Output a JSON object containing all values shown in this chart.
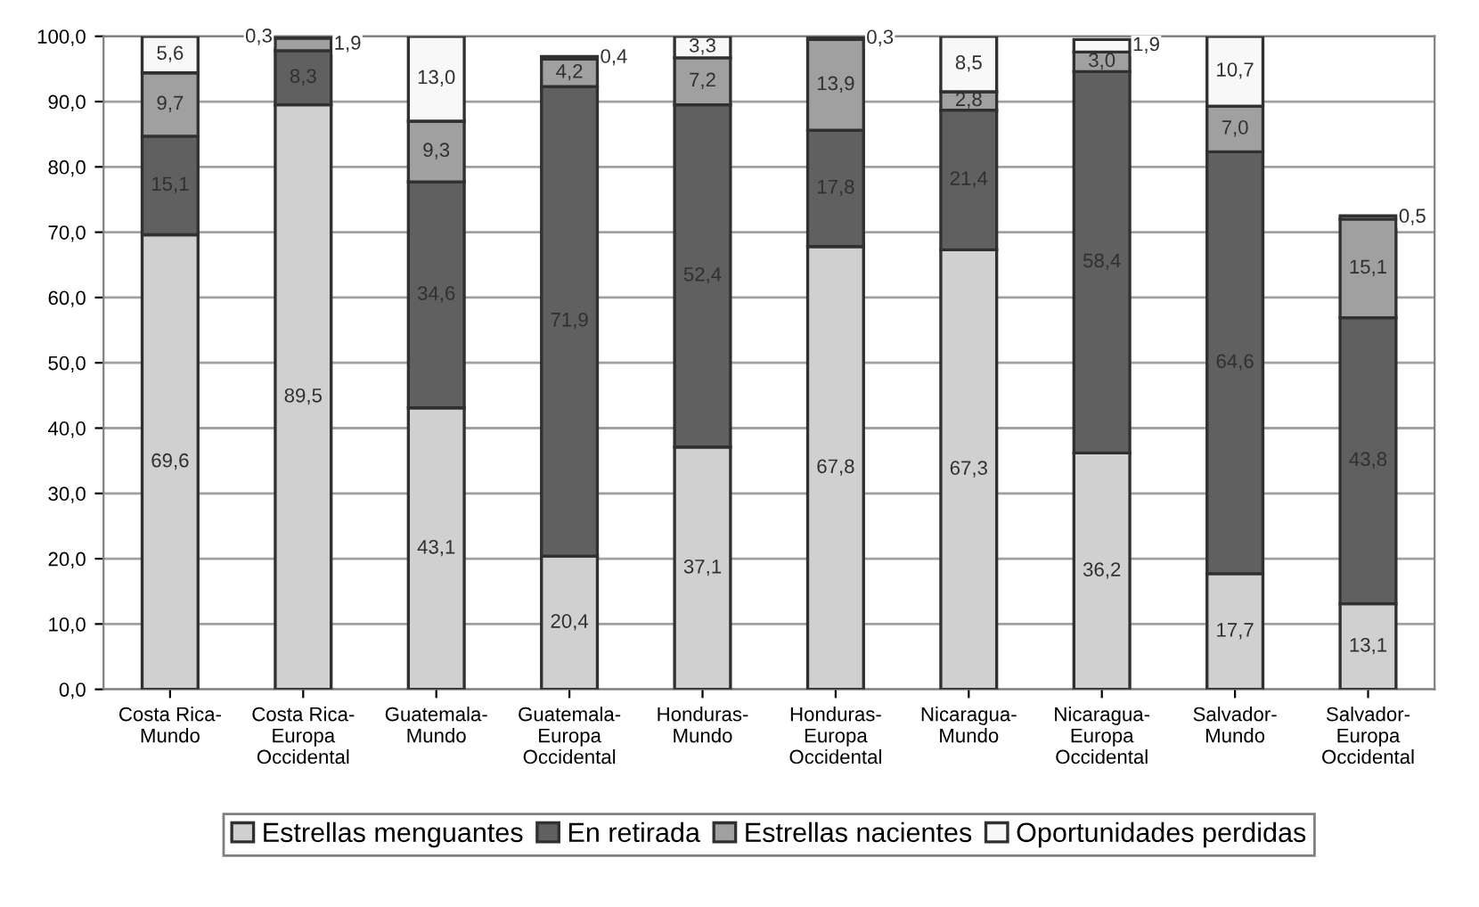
{
  "chart_data": {
    "type": "bar",
    "stacked": true,
    "categories": [
      "Costa Rica-\nMundo",
      "Costa Rica-\nEuropa\nOccidental",
      "Guatemala-\nMundo",
      "Guatemala-\nEuropa\nOccidental",
      "Honduras-\nMundo",
      "Honduras-\nEuropa\nOccidental",
      "Nicaragua-\nMundo",
      "Nicaragua-\nEuropa\nOccidental",
      "Salvador-\nMundo",
      "Salvador-\nEuropa\nOccidental"
    ],
    "series": [
      {
        "name": "Estrellas menguantes",
        "color": "#d0d0d0",
        "values": [
          69.6,
          89.5,
          43.1,
          20.4,
          37.1,
          67.8,
          67.3,
          36.2,
          17.7,
          13.1
        ],
        "value_labels": [
          "69,6",
          "89,5",
          "43,1",
          "20,4",
          "37,1",
          "67,8",
          "67,3",
          "36,2",
          "17,7",
          "13,1"
        ]
      },
      {
        "name": "En retirada",
        "color": "#606060",
        "values": [
          15.1,
          8.3,
          34.6,
          71.9,
          52.4,
          17.8,
          21.4,
          58.4,
          64.6,
          43.8
        ],
        "value_labels": [
          "15,1",
          "8,3",
          "34,6",
          "71,9",
          "52,4",
          "17,8",
          "21,4",
          "58,4",
          "64,6",
          "43,8"
        ]
      },
      {
        "name": "Estrellas nacientes",
        "color": "#a0a0a0",
        "values": [
          9.7,
          1.9,
          9.3,
          4.2,
          7.2,
          13.9,
          2.8,
          3.0,
          7.0,
          15.1
        ],
        "value_labels": [
          "9,7",
          "1,9",
          "9,3",
          "4,2",
          "7,2",
          "13,9",
          "2,8",
          "3,0",
          "7,0",
          "15,1"
        ]
      },
      {
        "name": "Oportunidades perdidas",
        "color": "#f8f8f8",
        "values": [
          5.6,
          0.3,
          13.0,
          0.4,
          3.3,
          0.3,
          8.5,
          1.9,
          10.7,
          0.5
        ],
        "value_labels": [
          "5,6",
          "0,3",
          "13,0",
          "0,4",
          "3,3",
          "0,3",
          "8,5",
          "1,9",
          "10,7",
          "0,5"
        ]
      }
    ],
    "ylim": [
      0,
      100
    ],
    "yticks": [
      {
        "value": 0,
        "label": "0,0"
      },
      {
        "value": 10,
        "label": "10,0"
      },
      {
        "value": 20,
        "label": "20,0"
      },
      {
        "value": 30,
        "label": "30,0"
      },
      {
        "value": 40,
        "label": "40,0"
      },
      {
        "value": 50,
        "label": "50,0"
      },
      {
        "value": 60,
        "label": "60,0"
      },
      {
        "value": 70,
        "label": "70,0"
      },
      {
        "value": 80,
        "label": "80,0"
      },
      {
        "value": 90,
        "label": "90,0"
      },
      {
        "value": 100,
        "label": "100,0"
      }
    ],
    "grid": "y",
    "legend": "bottom"
  }
}
